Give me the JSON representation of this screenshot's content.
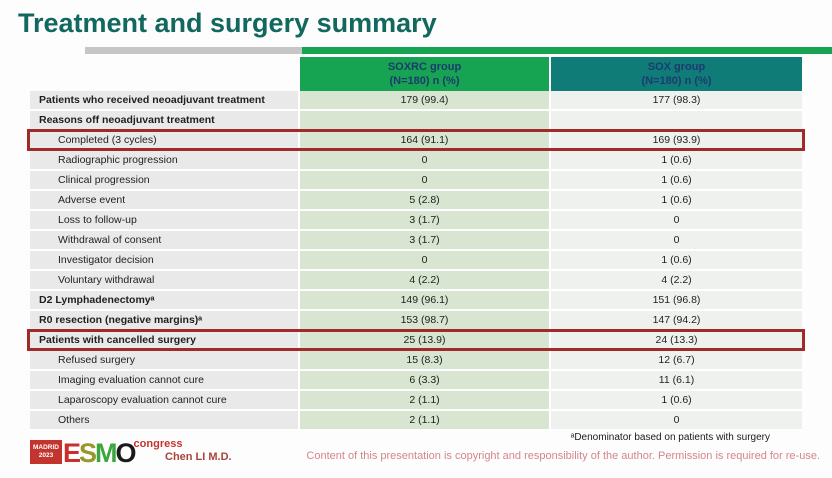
{
  "colors": {
    "title": "#12685e",
    "underline_gray": "#c6c6c6",
    "soxrc_green": "#16a452",
    "sox_teal": "#0f7c77",
    "header_text": "#1d3a70",
    "label_cell_bg": "#e9e9e9",
    "soxrc_cell_bg": "#d7e5d1",
    "sox_cell_bg": "#eef1ed",
    "highlight_red": "#9f2a29",
    "logo_red": "#c4342e",
    "presenter_red": "#a9443a",
    "copyright_pink": "#d4868b"
  },
  "slide": {
    "title": "Treatment and surgery summary"
  },
  "table": {
    "columns": [
      {
        "name": "SOXRC group",
        "sub": "(N=180)  n (%)"
      },
      {
        "name": "SOX group",
        "sub": "(N=180)  n (%)"
      }
    ],
    "rows": [
      {
        "label": "Patients who received neoadjuvant treatment",
        "soxrc": "179 (99.4)",
        "sox": "177 (98.3)",
        "bold": true,
        "indent": false,
        "highlight": false
      },
      {
        "label": "Reasons off neoadjuvant treatment",
        "soxrc": "",
        "sox": "",
        "bold": true,
        "indent": false,
        "highlight": false
      },
      {
        "label": "Completed (3 cycles)",
        "soxrc": "164 (91.1)",
        "sox": "169 (93.9)",
        "bold": false,
        "indent": true,
        "highlight": true
      },
      {
        "label": "Radiographic progression",
        "soxrc": "0",
        "sox": "1 (0.6)",
        "bold": false,
        "indent": true,
        "highlight": false
      },
      {
        "label": "Clinical progression",
        "soxrc": "0",
        "sox": "1 (0.6)",
        "bold": false,
        "indent": true,
        "highlight": false
      },
      {
        "label": "Adverse event",
        "soxrc": "5 (2.8)",
        "sox": "1 (0.6)",
        "bold": false,
        "indent": true,
        "highlight": false
      },
      {
        "label": "Loss to follow-up",
        "soxrc": "3 (1.7)",
        "sox": "0",
        "bold": false,
        "indent": true,
        "highlight": false
      },
      {
        "label": "Withdrawal of consent",
        "soxrc": "3 (1.7)",
        "sox": "0",
        "bold": false,
        "indent": true,
        "highlight": false
      },
      {
        "label": "Investigator decision",
        "soxrc": "0",
        "sox": "1 (0.6)",
        "bold": false,
        "indent": true,
        "highlight": false
      },
      {
        "label": "Voluntary withdrawal",
        "soxrc": "4 (2.2)",
        "sox": "4 (2.2)",
        "bold": false,
        "indent": true,
        "highlight": false
      },
      {
        "label": "D2 Lymphadenectomyᵃ",
        "soxrc": "149 (96.1)",
        "sox": "151 (96.8)",
        "bold": true,
        "indent": false,
        "highlight": false
      },
      {
        "label": "R0 resection (negative margins)ᵃ",
        "soxrc": "153 (98.7)",
        "sox": "147 (94.2)",
        "bold": true,
        "indent": false,
        "highlight": false
      },
      {
        "label": "Patients with cancelled surgery",
        "soxrc": "25 (13.9)",
        "sox": "24 (13.3)",
        "bold": true,
        "indent": false,
        "highlight": true
      },
      {
        "label": "Refused surgery",
        "soxrc": "15 (8.3)",
        "sox": "12 (6.7)",
        "bold": false,
        "indent": true,
        "highlight": false
      },
      {
        "label": "Imaging evaluation cannot cure",
        "soxrc": "6 (3.3)",
        "sox": "11 (6.1)",
        "bold": false,
        "indent": true,
        "highlight": false
      },
      {
        "label": "Laparoscopy evaluation cannot cure",
        "soxrc": "2 (1.1)",
        "sox": "1 (0.6)",
        "bold": false,
        "indent": true,
        "highlight": false
      },
      {
        "label": "Others",
        "soxrc": "2 (1.1)",
        "sox": "0",
        "bold": false,
        "indent": true,
        "highlight": false
      }
    ]
  },
  "footer": {
    "logo": {
      "venue": "MADRID",
      "year": "2023",
      "letters": [
        {
          "ch": "E",
          "color": "#c9302c"
        },
        {
          "ch": "S",
          "color": "#97972a"
        },
        {
          "ch": "M",
          "color": "#3aa63c"
        },
        {
          "ch": "O",
          "color": "#1a1a1a"
        }
      ],
      "congress": "congress"
    },
    "presenter": "Chen LI M.D.",
    "footnote": "ᵃDenominator based on patients with surgery",
    "copyright": "Content of this presentation is copyright and responsibility of the author. Permission is required for re-use."
  }
}
